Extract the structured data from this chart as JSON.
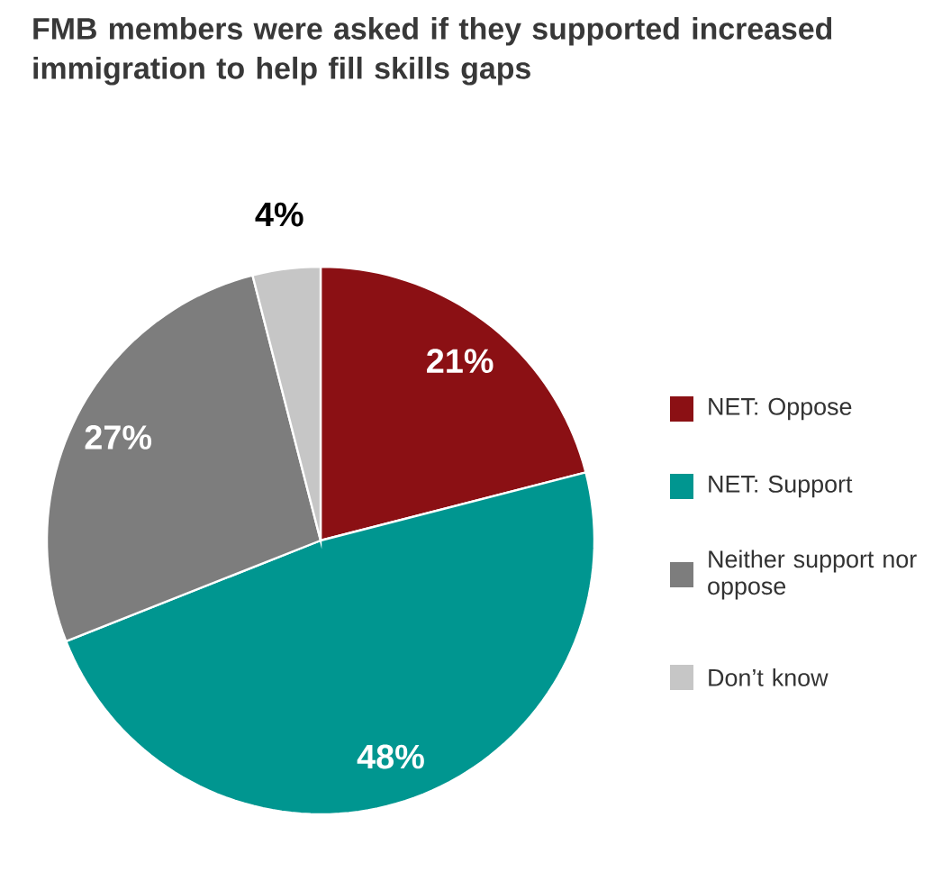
{
  "chart_data": {
    "type": "pie",
    "title": "FMB members were asked if they supported increased immigration to help fill skills gaps",
    "categories": [
      "NET: Oppose",
      "NET: Support",
      "Neither support nor oppose",
      "Don’t know"
    ],
    "values": [
      21,
      48,
      27,
      4
    ],
    "value_labels": [
      "21%",
      "48%",
      "27%",
      "4%"
    ],
    "colors": [
      "#8b1014",
      "#009690",
      "#7d7d7d",
      "#c6c6c6"
    ],
    "legend": "right"
  }
}
